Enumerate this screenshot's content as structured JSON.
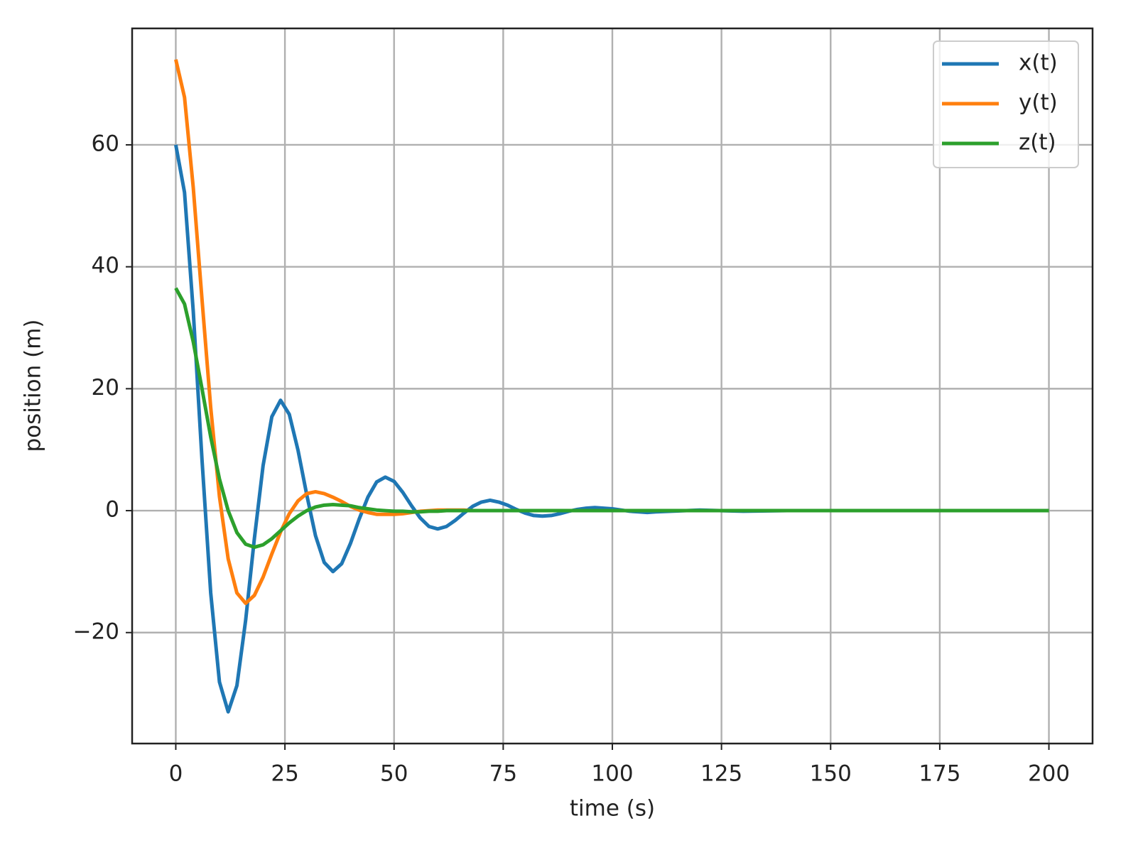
{
  "chart_data": {
    "type": "line",
    "x_label": "time (s)",
    "y_label": "position (m)",
    "x": [
      0,
      2,
      4,
      6,
      8,
      10,
      12,
      14,
      16,
      18,
      20,
      22,
      24,
      26,
      28,
      30,
      32,
      34,
      36,
      38,
      40,
      42,
      44,
      46,
      48,
      50,
      52,
      54,
      56,
      58,
      60,
      62,
      64,
      66,
      68,
      70,
      72,
      74,
      76,
      78,
      80,
      82,
      84,
      86,
      88,
      90,
      92,
      94,
      96,
      98,
      100,
      102,
      104,
      106,
      108,
      110,
      120,
      130,
      140,
      150,
      160,
      170,
      180,
      190,
      200
    ],
    "series": [
      {
        "name": "x(t)",
        "color": "#1f77b4",
        "values": [
          60,
          52.2,
          32.7,
          8.4,
          -13.5,
          -28.1,
          -33.0,
          -28.7,
          -18.0,
          -4.6,
          7.4,
          15.4,
          18.1,
          15.8,
          9.9,
          2.6,
          -4.1,
          -8.5,
          -10.0,
          -8.7,
          -5.4,
          -1.4,
          2.2,
          4.7,
          5.5,
          4.8,
          3.0,
          0.8,
          -1.2,
          -2.6,
          -3.0,
          -2.6,
          -1.6,
          -0.4,
          0.7,
          1.4,
          1.7,
          1.4,
          0.9,
          0.2,
          -0.4,
          -0.8,
          -0.9,
          -0.8,
          -0.5,
          -0.1,
          0.2,
          0.4,
          0.5,
          0.4,
          0.3,
          0.1,
          -0.1,
          -0.2,
          -0.3,
          -0.2,
          0.1,
          -0.1,
          0,
          0,
          0,
          0,
          0,
          0,
          0
        ]
      },
      {
        "name": "y(t)",
        "color": "#ff7f0e",
        "values": [
          74,
          67.8,
          53.0,
          34.7,
          16.9,
          2.3,
          -7.9,
          -13.5,
          -15.2,
          -13.9,
          -10.9,
          -7.1,
          -3.5,
          -0.5,
          1.6,
          2.8,
          3.1,
          2.8,
          2.2,
          1.5,
          0.7,
          0.1,
          -0.3,
          -0.6,
          -0.6,
          -0.6,
          -0.5,
          -0.3,
          -0.1,
          0,
          0.1,
          0.1,
          0.1,
          0.1,
          0,
          0,
          0,
          0,
          0,
          0,
          0,
          0,
          0,
          0,
          0,
          0,
          0,
          0,
          0,
          0,
          0,
          0,
          0,
          0,
          0,
          0,
          0,
          0,
          0,
          0,
          0,
          0,
          0,
          0,
          0
        ]
      },
      {
        "name": "z(t)",
        "color": "#2ca02c",
        "values": [
          36.5,
          33.9,
          27.7,
          20.0,
          12.1,
          5.2,
          0,
          -3.6,
          -5.5,
          -6.0,
          -5.6,
          -4.6,
          -3.3,
          -2.0,
          -0.9,
          0,
          0.6,
          0.9,
          1.0,
          0.9,
          0.8,
          0.5,
          0.3,
          0.1,
          0,
          -0.1,
          -0.1,
          -0.2,
          -0.2,
          -0.1,
          -0.1,
          0,
          0,
          0,
          0,
          0,
          0,
          0,
          0,
          0,
          0,
          0,
          0,
          0,
          0,
          0,
          0,
          0,
          0,
          0,
          0,
          0,
          0,
          0,
          0,
          0,
          0,
          0,
          0,
          0,
          0,
          0,
          0,
          0,
          0
        ]
      }
    ],
    "xlim": [
      -10,
      210
    ],
    "ylim": [
      -38.2,
      79.1
    ],
    "xticks": [
      0,
      25,
      50,
      75,
      100,
      125,
      150,
      175,
      200
    ],
    "yticks": [
      {
        "value": -20,
        "label": "−20"
      },
      0,
      20,
      40,
      60
    ],
    "grid": true,
    "legend": "upper right"
  }
}
